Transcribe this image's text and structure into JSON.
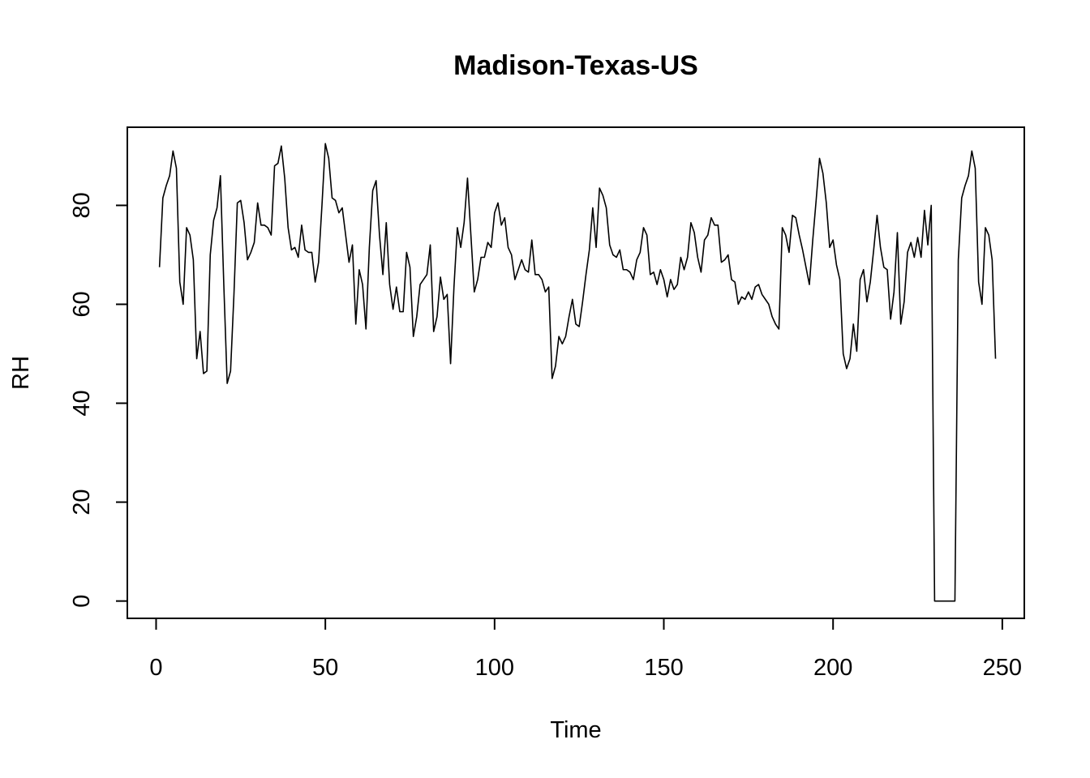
{
  "chart_data": {
    "type": "line",
    "title": "Madison-Texas-US",
    "xlabel": "Time",
    "ylabel": "RH",
    "xlim": [
      -8.5,
      256.5
    ],
    "ylim": [
      -3.5,
      95.8
    ],
    "xticks": [
      0,
      50,
      100,
      150,
      200,
      250
    ],
    "yticks": [
      0,
      20,
      40,
      60,
      80
    ],
    "grid": false,
    "series": [
      {
        "points": [
          [
            1,
            67.5
          ],
          [
            2,
            81.5
          ],
          [
            3,
            84
          ],
          [
            4,
            86
          ],
          [
            5,
            91
          ],
          [
            6,
            87.5
          ],
          [
            7,
            64.5
          ],
          [
            8,
            60
          ],
          [
            9,
            75.5
          ],
          [
            10,
            74
          ],
          [
            11,
            69
          ],
          [
            12,
            49
          ],
          [
            13,
            54.5
          ],
          [
            14,
            46
          ],
          [
            15,
            46.5
          ],
          [
            16,
            70
          ],
          [
            17,
            77
          ],
          [
            18,
            79.5
          ],
          [
            19,
            86
          ],
          [
            20,
            64
          ],
          [
            21,
            44
          ],
          [
            22,
            46.5
          ],
          [
            23,
            62
          ],
          [
            24,
            80.5
          ],
          [
            25,
            81
          ],
          [
            26,
            76.5
          ],
          [
            27,
            69
          ],
          [
            28,
            70.5
          ],
          [
            29,
            72.5
          ],
          [
            30,
            80.5
          ],
          [
            31,
            76
          ],
          [
            32,
            76
          ],
          [
            33,
            75.5
          ],
          [
            34,
            74
          ],
          [
            35,
            88
          ],
          [
            36,
            88.5
          ],
          [
            37,
            92
          ],
          [
            38,
            85.5
          ],
          [
            39,
            75.5
          ],
          [
            40,
            71
          ],
          [
            41,
            71.5
          ],
          [
            42,
            69.5
          ],
          [
            43,
            76
          ],
          [
            44,
            71
          ],
          [
            45,
            70.5
          ],
          [
            46,
            70.5
          ],
          [
            47,
            64.5
          ],
          [
            48,
            68.5
          ],
          [
            49,
            80
          ],
          [
            50,
            92.5
          ],
          [
            51,
            89.5
          ],
          [
            52,
            81.5
          ],
          [
            53,
            81
          ],
          [
            54,
            78.5
          ],
          [
            55,
            79.5
          ],
          [
            56,
            74
          ],
          [
            57,
            68.5
          ],
          [
            58,
            72
          ],
          [
            59,
            56
          ],
          [
            60,
            67
          ],
          [
            61,
            64
          ],
          [
            62,
            55
          ],
          [
            63,
            71.5
          ],
          [
            64,
            83
          ],
          [
            65,
            85
          ],
          [
            66,
            74
          ],
          [
            67,
            66
          ],
          [
            68,
            76.5
          ],
          [
            69,
            64
          ],
          [
            70,
            59
          ],
          [
            71,
            63.5
          ],
          [
            72,
            58.5
          ],
          [
            73,
            58.5
          ],
          [
            74,
            70.5
          ],
          [
            75,
            67.5
          ],
          [
            76,
            53.5
          ],
          [
            77,
            57.5
          ],
          [
            78,
            64
          ],
          [
            79,
            65
          ],
          [
            80,
            66
          ],
          [
            81,
            72
          ],
          [
            82,
            54.5
          ],
          [
            83,
            57.5
          ],
          [
            84,
            65.5
          ],
          [
            85,
            61
          ],
          [
            86,
            62
          ],
          [
            87,
            48
          ],
          [
            88,
            63.5
          ],
          [
            89,
            75.5
          ],
          [
            90,
            71.5
          ],
          [
            91,
            76.5
          ],
          [
            92,
            85.5
          ],
          [
            93,
            74
          ],
          [
            94,
            62.5
          ],
          [
            95,
            65
          ],
          [
            96,
            69.5
          ],
          [
            97,
            69.5
          ],
          [
            98,
            72.5
          ],
          [
            99,
            71.5
          ],
          [
            100,
            78.5
          ],
          [
            101,
            80.5
          ],
          [
            102,
            76
          ],
          [
            103,
            77.5
          ],
          [
            104,
            71.5
          ],
          [
            105,
            70
          ],
          [
            106,
            65
          ],
          [
            107,
            67
          ],
          [
            108,
            69
          ],
          [
            109,
            67
          ],
          [
            110,
            66.5
          ],
          [
            111,
            73
          ],
          [
            112,
            66
          ],
          [
            113,
            66
          ],
          [
            114,
            65
          ],
          [
            115,
            62.5
          ],
          [
            116,
            63.5
          ],
          [
            117,
            45
          ],
          [
            118,
            47.5
          ],
          [
            119,
            53.5
          ],
          [
            120,
            52
          ],
          [
            121,
            53.5
          ],
          [
            122,
            57.5
          ],
          [
            123,
            61
          ],
          [
            124,
            56
          ],
          [
            125,
            55.5
          ],
          [
            126,
            60.5
          ],
          [
            127,
            66
          ],
          [
            128,
            71
          ],
          [
            129,
            79.5
          ],
          [
            130,
            71.5
          ],
          [
            131,
            83.5
          ],
          [
            132,
            82
          ],
          [
            133,
            79.5
          ],
          [
            134,
            72
          ],
          [
            135,
            70
          ],
          [
            136,
            69.5
          ],
          [
            137,
            71
          ],
          [
            138,
            67
          ],
          [
            139,
            67
          ],
          [
            140,
            66.5
          ],
          [
            141,
            65
          ],
          [
            142,
            69
          ],
          [
            143,
            70.5
          ],
          [
            144,
            75.5
          ],
          [
            145,
            74
          ],
          [
            146,
            66
          ],
          [
            147,
            66.5
          ],
          [
            148,
            64
          ],
          [
            149,
            67
          ],
          [
            150,
            65
          ],
          [
            151,
            61.5
          ],
          [
            152,
            65
          ],
          [
            153,
            63
          ],
          [
            154,
            64
          ],
          [
            155,
            69.5
          ],
          [
            156,
            67
          ],
          [
            157,
            69.5
          ],
          [
            158,
            76.5
          ],
          [
            159,
            74.5
          ],
          [
            160,
            69.5
          ],
          [
            161,
            66.5
          ],
          [
            162,
            73
          ],
          [
            163,
            74
          ],
          [
            164,
            77.5
          ],
          [
            165,
            76
          ],
          [
            166,
            76
          ],
          [
            167,
            68.5
          ],
          [
            168,
            69
          ],
          [
            169,
            70
          ],
          [
            170,
            65
          ],
          [
            171,
            64.5
          ],
          [
            172,
            60
          ],
          [
            173,
            61.5
          ],
          [
            174,
            61
          ],
          [
            175,
            62.5
          ],
          [
            176,
            61
          ],
          [
            177,
            63.5
          ],
          [
            178,
            64
          ],
          [
            179,
            62
          ],
          [
            180,
            61
          ],
          [
            181,
            60
          ],
          [
            182,
            57.5
          ],
          [
            183,
            56
          ],
          [
            184,
            55
          ],
          [
            185,
            75.5
          ],
          [
            186,
            74
          ],
          [
            187,
            70.5
          ],
          [
            188,
            78
          ],
          [
            189,
            77.5
          ],
          [
            190,
            74
          ],
          [
            191,
            71
          ],
          [
            192,
            67.5
          ],
          [
            193,
            64
          ],
          [
            194,
            73
          ],
          [
            195,
            81
          ],
          [
            196,
            89.5
          ],
          [
            197,
            86.5
          ],
          [
            198,
            80.5
          ],
          [
            199,
            71.5
          ],
          [
            200,
            73
          ],
          [
            201,
            68
          ],
          [
            202,
            65
          ],
          [
            203,
            50
          ],
          [
            204,
            47
          ],
          [
            205,
            49
          ],
          [
            206,
            56
          ],
          [
            207,
            50.5
          ],
          [
            208,
            65
          ],
          [
            209,
            67
          ],
          [
            210,
            60.5
          ],
          [
            211,
            64.5
          ],
          [
            212,
            71
          ],
          [
            213,
            78
          ],
          [
            214,
            71.5
          ],
          [
            215,
            67.5
          ],
          [
            216,
            67
          ],
          [
            217,
            57
          ],
          [
            218,
            62.5
          ],
          [
            219,
            74.5
          ],
          [
            220,
            56
          ],
          [
            221,
            60.5
          ],
          [
            222,
            70.5
          ],
          [
            223,
            72.5
          ],
          [
            224,
            69.5
          ],
          [
            225,
            73.5
          ],
          [
            226,
            69.5
          ],
          [
            227,
            79
          ],
          [
            228,
            72
          ],
          [
            229,
            80
          ],
          [
            230,
            0
          ],
          [
            231,
            0
          ],
          [
            232,
            0
          ],
          [
            233,
            0
          ],
          [
            234,
            0
          ],
          [
            235,
            0
          ],
          [
            236,
            0
          ],
          [
            237,
            69
          ],
          [
            238,
            81.5
          ],
          [
            239,
            84
          ],
          [
            240,
            86
          ],
          [
            241,
            91
          ],
          [
            242,
            87.5
          ],
          [
            243,
            64.5
          ],
          [
            244,
            60
          ],
          [
            245,
            75.5
          ],
          [
            246,
            74
          ],
          [
            247,
            69
          ],
          [
            248,
            49
          ]
        ]
      }
    ]
  }
}
